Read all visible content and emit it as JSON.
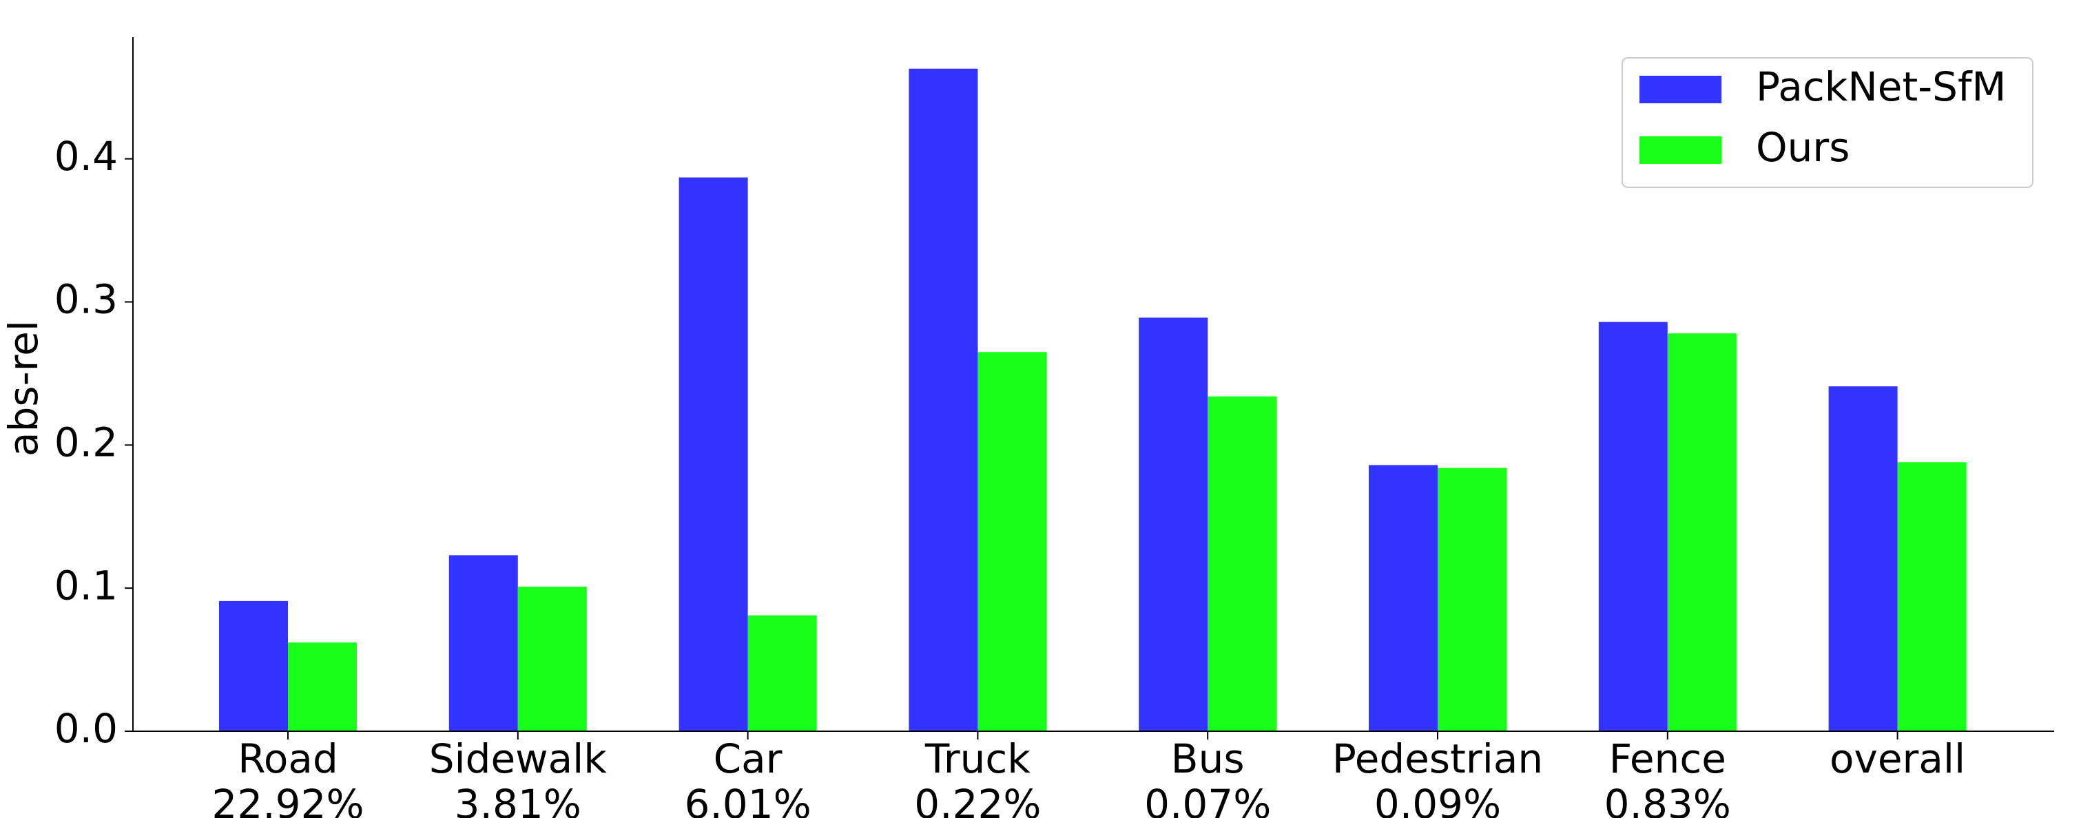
{
  "chart_data": {
    "type": "bar",
    "y_label": "abs-rel",
    "categories": [
      "Road",
      "Sidewalk",
      "Car",
      "Truck",
      "Bus",
      "Pedestrian",
      "Fence",
      "overall"
    ],
    "category_notes": [
      "22.92%",
      "3.81%",
      "6.01%",
      "0.22%",
      "0.07%",
      "0.09%",
      "0.83%"
    ],
    "series": [
      {
        "name": "PackNet-SfM",
        "color": "#3333ff",
        "values": [
          0.091,
          0.123,
          0.387,
          0.463,
          0.289,
          0.186,
          0.286,
          0.241
        ]
      },
      {
        "name": "Ours",
        "color": "#1aff1a",
        "values": [
          0.062,
          0.101,
          0.081,
          0.265,
          0.234,
          0.184,
          0.278,
          0.188
        ]
      }
    ],
    "ylim": [
      0,
      0.485
    ],
    "yticks": [
      {
        "value": 0,
        "label": "0.0"
      },
      0.1,
      0.2,
      0.3,
      0.4
    ],
    "legend": "upper right",
    "grid": false
  }
}
